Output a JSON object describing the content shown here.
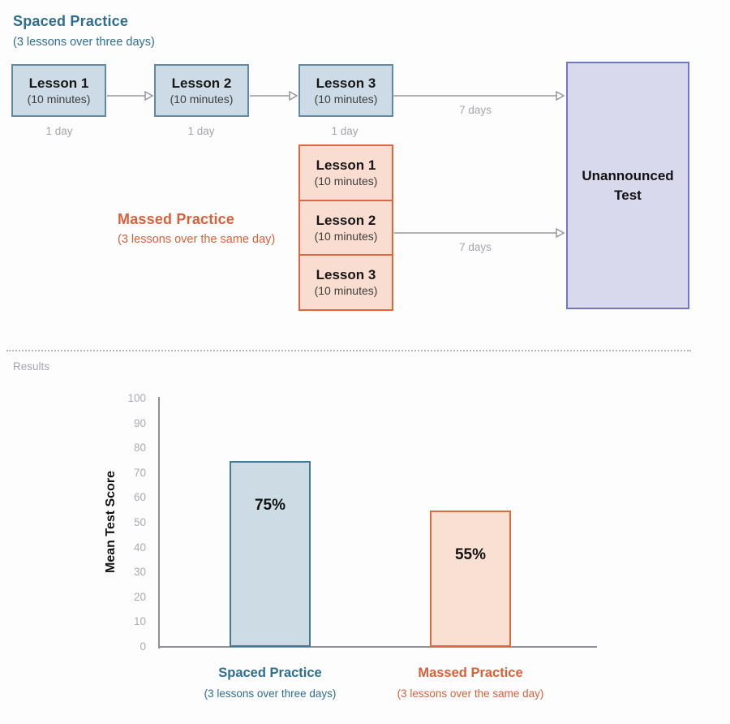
{
  "diagram": {
    "spaced": {
      "title": "Spaced Practice",
      "subtitle": "(3 lessons over three days)",
      "lessons": [
        {
          "title": "Lesson 1",
          "duration": "(10 minutes)"
        },
        {
          "title": "Lesson 2",
          "duration": "(10 minutes)"
        },
        {
          "title": "Lesson 3",
          "duration": "(10 minutes)"
        }
      ],
      "gap_labels": [
        "1 day",
        "1 day",
        "1 day"
      ],
      "arrow_label": "7 days"
    },
    "massed": {
      "title": "Massed Practice",
      "subtitle": "(3 lessons over the same day)",
      "lessons": [
        {
          "title": "Lesson 1",
          "duration": "(10 minutes)"
        },
        {
          "title": "Lesson 2",
          "duration": "(10 minutes)"
        },
        {
          "title": "Lesson 3",
          "duration": "(10 minutes)"
        }
      ],
      "arrow_label": "7 days"
    },
    "test_box": {
      "label": "Unannounced Test"
    }
  },
  "results": {
    "label": "Results"
  },
  "chart_data": {
    "type": "bar",
    "title": "",
    "xlabel": "",
    "ylabel": "Mean Test Score",
    "ylim": [
      0,
      100
    ],
    "yticks": [
      0,
      10,
      20,
      30,
      40,
      50,
      60,
      70,
      80,
      90,
      100
    ],
    "grid": false,
    "legend": "none",
    "categories": [
      "Spaced Practice",
      "Massed Practice"
    ],
    "category_subtitles": [
      "(3 lessons over three days)",
      "(3 lessons over the same day)"
    ],
    "values": [
      75,
      55
    ],
    "bar_labels": [
      "75%",
      "55%"
    ]
  },
  "colors": {
    "spaced_accent": "#2e6e91",
    "massed_accent": "#d9613a",
    "spaced_box_fill": "#ccdbe5",
    "spaced_box_border": "#5d8aa4",
    "massed_box_fill": "#f9ddd0",
    "massed_box_border": "#e0673d",
    "test_box_fill": "#d9d9ee",
    "test_box_border": "#7377c3",
    "bar_spaced_fill": "#cddce4",
    "bar_spaced_border": "#447b93",
    "bar_massed_fill": "#f9e0d2",
    "bar_massed_border": "#d96b41",
    "muted_gray": "#a7a7ab",
    "axis_gray": "#8f8f94"
  }
}
